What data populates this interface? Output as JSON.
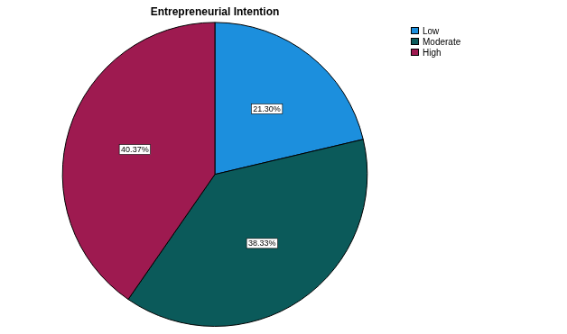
{
  "chart_data": {
    "type": "pie",
    "title": "Entrepreneurial Intention",
    "categories": [
      "Low",
      "Moderate",
      "High"
    ],
    "values": [
      21.3,
      38.33,
      40.37
    ],
    "value_labels": [
      "21.30%",
      "38.33%",
      "40.37%"
    ],
    "colors": [
      "#1c8fdd",
      "#0b5a5a",
      "#9e1a50"
    ],
    "data_labels": true,
    "legend": "upper right"
  }
}
